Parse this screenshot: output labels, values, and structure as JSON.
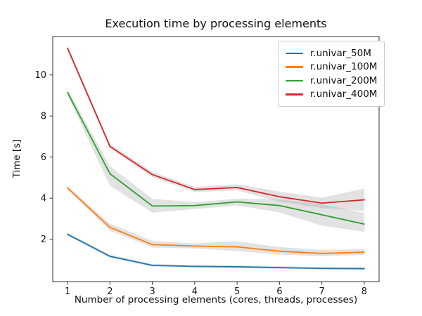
{
  "chart_data": {
    "type": "line",
    "title": "Execution time by processing elements",
    "xlabel": "Number of processing elements (cores, threads, processes)",
    "ylabel": "Time [s]",
    "x": [
      1,
      2,
      3,
      4,
      5,
      6,
      7,
      8
    ],
    "x_ticks": [
      "1",
      "2",
      "3",
      "4",
      "5",
      "6",
      "7",
      "8"
    ],
    "y_ticks": [
      "2",
      "4",
      "6",
      "8",
      "10"
    ],
    "xlim": [
      0.65,
      8.35
    ],
    "ylim": [
      -0.06,
      11.87
    ],
    "grid": false,
    "legend_position": "upper right",
    "band_color": "#a0a0a0",
    "band_opacity": 0.3,
    "series": [
      {
        "name": "r.univar_50M",
        "color": "#1f77b4",
        "values": [
          2.24,
          1.17,
          0.73,
          0.68,
          0.66,
          0.62,
          0.58,
          0.57
        ],
        "band_lower": [
          2.17,
          1.1,
          0.67,
          0.62,
          0.6,
          0.56,
          0.52,
          0.5
        ],
        "band_upper": [
          2.31,
          1.25,
          0.8,
          0.74,
          0.73,
          0.69,
          0.65,
          0.64
        ]
      },
      {
        "name": "r.univar_100M",
        "color": "#ff7f0e",
        "values": [
          4.5,
          2.58,
          1.74,
          1.67,
          1.63,
          1.42,
          1.31,
          1.37
        ],
        "band_lower": [
          4.42,
          2.42,
          1.6,
          1.55,
          1.43,
          1.26,
          1.18,
          1.24
        ],
        "band_upper": [
          4.58,
          2.76,
          1.92,
          1.8,
          1.9,
          1.62,
          1.48,
          1.52
        ]
      },
      {
        "name": "r.univar_200M",
        "color": "#2ca02c",
        "values": [
          9.14,
          5.19,
          3.62,
          3.64,
          3.82,
          3.64,
          3.19,
          2.74
        ],
        "band_lower": [
          9.0,
          4.6,
          3.3,
          3.47,
          3.65,
          3.31,
          2.66,
          2.36
        ],
        "band_upper": [
          9.3,
          5.56,
          3.97,
          3.8,
          3.98,
          3.95,
          3.7,
          3.28
        ]
      },
      {
        "name": "r.univar_400M",
        "color": "#d62728",
        "values": [
          11.3,
          6.52,
          5.15,
          4.42,
          4.52,
          4.07,
          3.76,
          3.92
        ],
        "band_lower": [
          11.18,
          6.41,
          5.02,
          4.3,
          4.38,
          3.83,
          3.52,
          3.38
        ],
        "band_upper": [
          11.42,
          6.64,
          5.28,
          4.55,
          4.68,
          4.32,
          4.02,
          4.47
        ]
      }
    ]
  }
}
